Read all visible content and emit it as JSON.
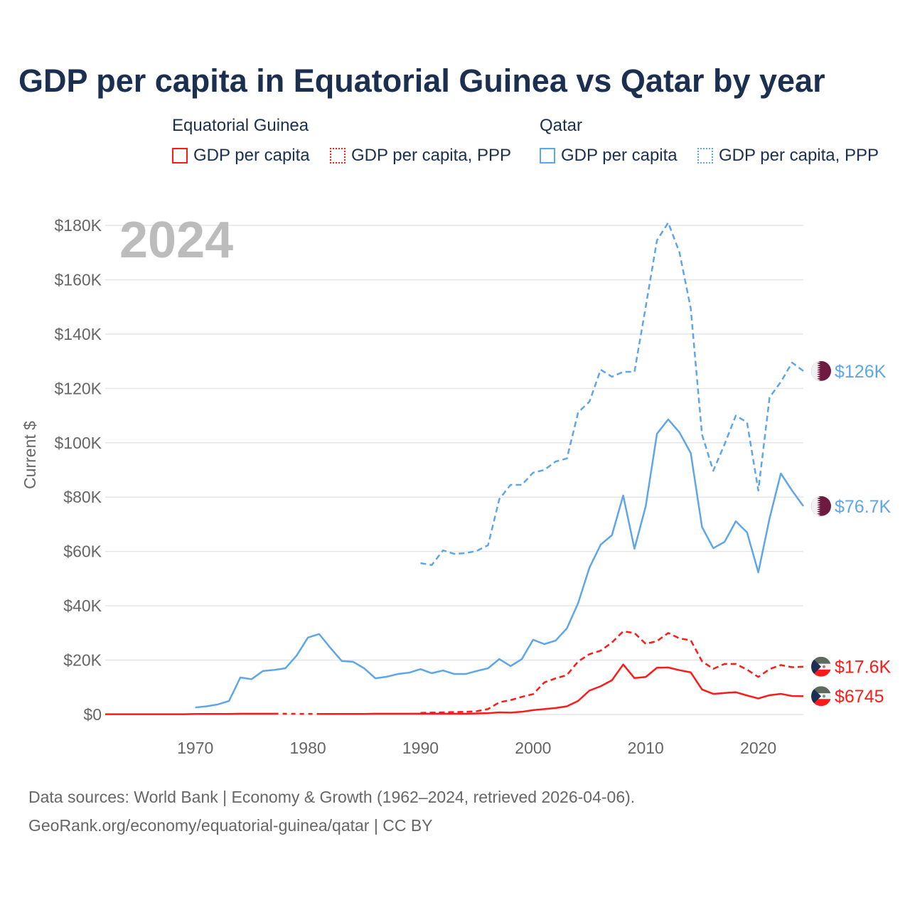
{
  "title": "GDP per capita in Equatorial Guinea vs Qatar by year",
  "legend": {
    "groups": [
      {
        "country": "Equatorial Guinea",
        "items": [
          "GDP per capita",
          "GDP per capita, PPP"
        ],
        "color": "#ff1a1a"
      },
      {
        "country": "Qatar",
        "items": [
          "GDP per capita",
          "GDP per capita, PPP"
        ],
        "color": "#5ea6ea"
      }
    ]
  },
  "year_badge": "2024",
  "footer": {
    "line1": "Data sources: World Bank | Economy & Growth (1962–2024, retrieved 2026-04-06).",
    "line2": "GeoRank.org/economy/equatorial-guinea/qatar | CC BY"
  },
  "chart_data": {
    "type": "line",
    "title": "GDP per capita in Equatorial Guinea vs Qatar by year",
    "xlabel": "",
    "ylabel": "Current $",
    "xlim": [
      1962,
      2024
    ],
    "ylim": [
      0,
      180
    ],
    "y_unit": "thousand USD",
    "grid": true,
    "legend_position": "top",
    "x_ticks": [
      1970,
      1980,
      1990,
      2000,
      2010,
      2020
    ],
    "y_ticks": [
      {
        "value": 0,
        "label": "$0"
      },
      {
        "value": 20,
        "label": "$20K"
      },
      {
        "value": 40,
        "label": "$40K"
      },
      {
        "value": 60,
        "label": "$60K"
      },
      {
        "value": 80,
        "label": "$80K"
      },
      {
        "value": 100,
        "label": "$100K"
      },
      {
        "value": 120,
        "label": "$120K"
      },
      {
        "value": 140,
        "label": "$140K"
      },
      {
        "value": 160,
        "label": "$160K"
      },
      {
        "value": 180,
        "label": "$180K"
      }
    ],
    "series": [
      {
        "name": "Equatorial Guinea GDP per capita",
        "color": "#ff1a1a",
        "dash": "solid",
        "start_year": 1962,
        "flag": "equatorial-guinea",
        "end_label": "$6745",
        "values": [
          0.1,
          0.1,
          0.1,
          0.1,
          0.1,
          0.1,
          0.1,
          0.1,
          0.2,
          0.2,
          0.2,
          0.2,
          0.3,
          0.3,
          0.3,
          0.3,
          null,
          null,
          null,
          0.2,
          0.2,
          0.2,
          0.2,
          0.2,
          0.3,
          0.3,
          0.3,
          0.3,
          0.3,
          0.3,
          0.3,
          0.3,
          0.3,
          0.4,
          0.5,
          0.8,
          0.7,
          1,
          1.6,
          2,
          2.4,
          3,
          5,
          8.8,
          10.4,
          12.6,
          18.4,
          13.4,
          13.8,
          17.2,
          17.3,
          16.3,
          15.5,
          9.2,
          7.6,
          7.9,
          8.2,
          7,
          5.9,
          7.1,
          7.6,
          6.8,
          6.745
        ]
      },
      {
        "name": "Equatorial Guinea GDP per capita, PPP",
        "color": "#ff1a1a",
        "dash": "dashed",
        "start_year": 1990,
        "flag": "equatorial-guinea",
        "end_label": "$17.6K",
        "values": [
          0.6,
          0.7,
          0.8,
          0.9,
          1,
          1.2,
          2,
          4.5,
          5.3,
          6.5,
          7.5,
          11.8,
          13.3,
          14.5,
          19.5,
          22.2,
          23.5,
          26.5,
          30.6,
          30,
          26,
          27,
          30,
          28,
          27.3,
          19.6,
          16.8,
          18.6,
          18.6,
          16.5,
          13.8,
          16.7,
          18.2,
          17.4,
          17.6
        ]
      },
      {
        "name": "Qatar GDP per capita",
        "color": "#5ea6ea",
        "dash": "solid",
        "start_year": 1970,
        "flag": "qatar",
        "end_label": "$76.7K",
        "values": [
          2.6,
          3,
          3.7,
          5,
          13.6,
          13,
          16,
          16.4,
          17,
          21.7,
          28.3,
          29.6,
          24.5,
          19.7,
          19.4,
          17,
          13.3,
          13.9,
          14.9,
          15.4,
          16.7,
          15.2,
          16.2,
          14.9,
          14.9,
          16,
          17,
          20.4,
          17.8,
          20.4,
          27.5,
          25.9,
          27.2,
          31.7,
          41,
          54,
          62.5,
          66,
          80.6,
          61,
          76.6,
          103.3,
          108.6,
          103.8,
          96.2,
          69,
          61.2,
          63.5,
          71.1,
          67,
          52.3,
          72.2,
          88.7,
          82.4,
          76.7
        ]
      },
      {
        "name": "Qatar GDP per capita, PPP",
        "color": "#5ea6ea",
        "dash": "dashed",
        "start_year": 1990,
        "flag": "qatar",
        "end_label": "$126K",
        "values": [
          55.7,
          55,
          60.4,
          59.1,
          59.4,
          60.2,
          62.3,
          79.3,
          84.5,
          84.5,
          89,
          90,
          93.1,
          94.2,
          111.2,
          115.1,
          126.9,
          124.3,
          126.1,
          126.1,
          150,
          174.5,
          181,
          170,
          149.4,
          103,
          89.7,
          99.4,
          110,
          107.5,
          82.4,
          116.7,
          122.4,
          129.5,
          126.4
        ]
      }
    ]
  }
}
